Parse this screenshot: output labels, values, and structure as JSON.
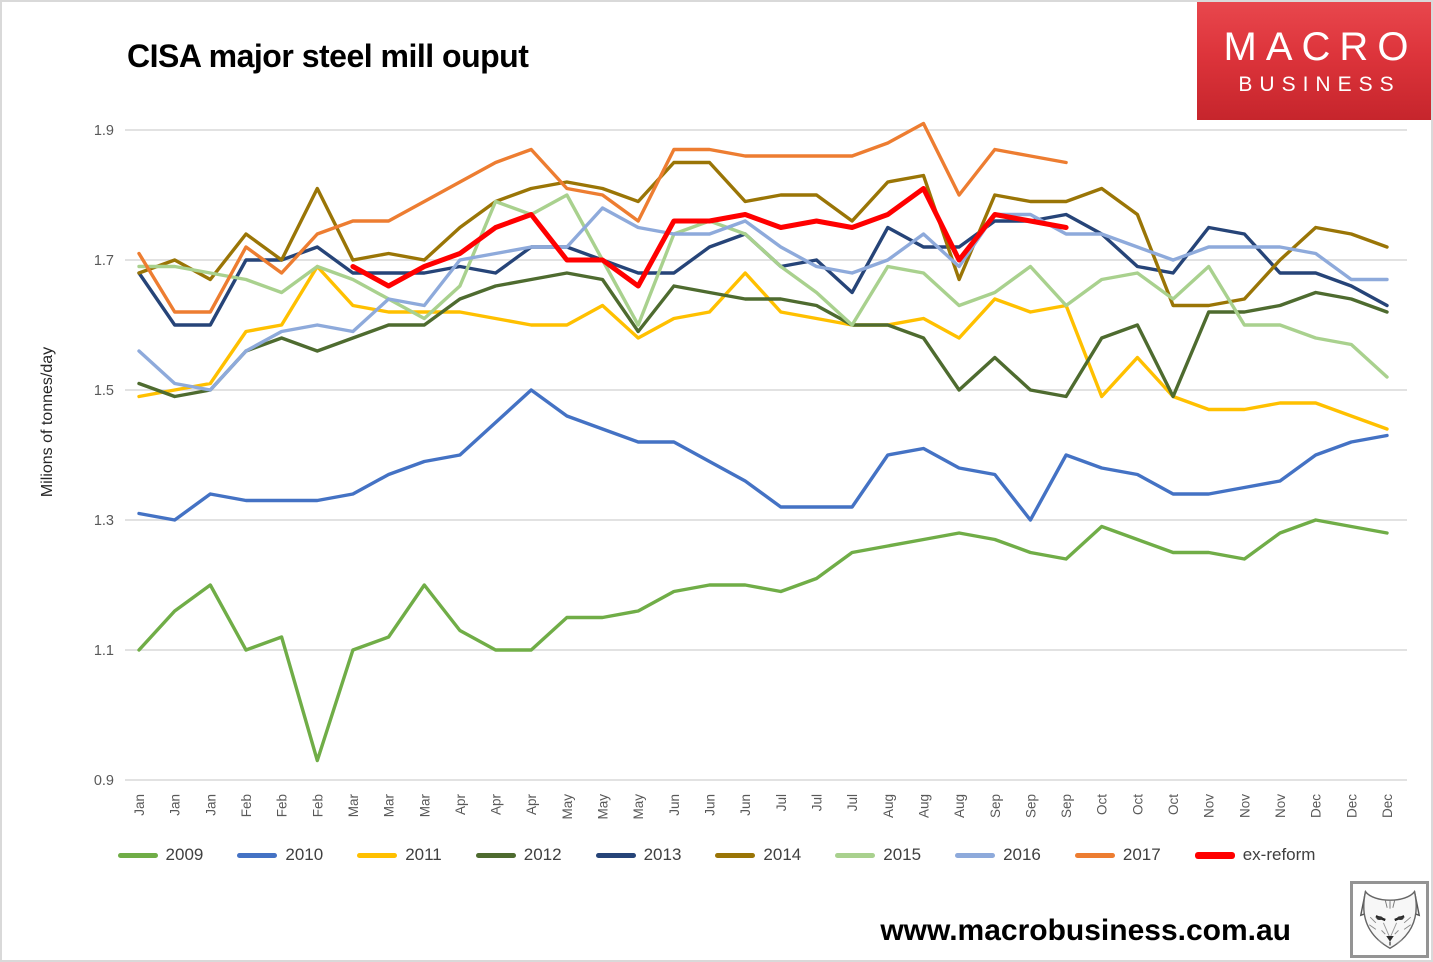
{
  "title": "CISA major steel mill ouput",
  "logo": {
    "line1": "MACRO",
    "line2": "BUSINESS",
    "bg_color": "#D7282F"
  },
  "y_axis_title": "Milions of tonnes/day",
  "footer": {
    "url": "www.macrobusiness.com.au",
    "wolf_logo": "fox-head-sketch"
  },
  "chart_data": {
    "type": "line",
    "title": "CISA major steel mill ouput",
    "ylabel": "Milions of tonnes/day",
    "xlabel": "",
    "ylim": [
      0.9,
      1.9
    ],
    "yticks": [
      0.9,
      1.1,
      1.3,
      1.5,
      1.7,
      1.9
    ],
    "grid": true,
    "legend_position": "bottom",
    "colors": {
      "grid": "#D9D9D9",
      "tick_labels": "#595959",
      "legend_text": "#404040"
    },
    "categories": [
      "Jan",
      "Jan",
      "Jan",
      "Feb",
      "Feb",
      "Feb",
      "Mar",
      "Mar",
      "Mar",
      "Apr",
      "Apr",
      "Apr",
      "May",
      "May",
      "May",
      "Jun",
      "Jun",
      "Jun",
      "Jul",
      "Jul",
      "Jul",
      "Aug",
      "Aug",
      "Aug",
      "Sep",
      "Sep",
      "Sep",
      "Oct",
      "Oct",
      "Oct",
      "Nov",
      "Nov",
      "Nov",
      "Dec",
      "Dec",
      "Dec"
    ],
    "series": [
      {
        "name": "2009",
        "color": "#70AD47",
        "width": 3.4,
        "values": [
          1.1,
          1.16,
          1.2,
          1.1,
          1.12,
          0.93,
          1.1,
          1.12,
          1.2,
          1.13,
          1.1,
          1.1,
          1.15,
          1.15,
          1.16,
          1.19,
          1.2,
          1.2,
          1.19,
          1.21,
          1.25,
          1.26,
          1.27,
          1.28,
          1.27,
          1.25,
          1.24,
          1.29,
          1.27,
          1.25,
          1.25,
          1.24,
          1.28,
          1.3,
          1.29,
          1.28
        ]
      },
      {
        "name": "2010",
        "color": "#4472C4",
        "width": 3.4,
        "values": [
          1.31,
          1.3,
          1.34,
          1.33,
          1.33,
          1.33,
          1.34,
          1.37,
          1.39,
          1.4,
          1.45,
          1.5,
          1.46,
          1.44,
          1.42,
          1.42,
          1.39,
          1.36,
          1.32,
          1.32,
          1.32,
          1.4,
          1.41,
          1.38,
          1.37,
          1.3,
          1.4,
          1.38,
          1.37,
          1.34,
          1.34,
          1.35,
          1.36,
          1.4,
          1.42,
          1.43
        ]
      },
      {
        "name": "2011",
        "color": "#FFC000",
        "width": 3.4,
        "values": [
          1.49,
          1.5,
          1.51,
          1.59,
          1.6,
          1.69,
          1.63,
          1.62,
          1.62,
          1.62,
          1.61,
          1.6,
          1.6,
          1.63,
          1.58,
          1.61,
          1.62,
          1.68,
          1.62,
          1.61,
          1.6,
          1.6,
          1.61,
          1.58,
          1.64,
          1.62,
          1.63,
          1.49,
          1.55,
          1.49,
          1.47,
          1.47,
          1.48,
          1.48,
          1.46,
          1.44
        ]
      },
      {
        "name": "2012",
        "color": "#4E6B2F",
        "width": 3.4,
        "values": [
          1.51,
          1.49,
          1.5,
          1.56,
          1.58,
          1.56,
          1.58,
          1.6,
          1.6,
          1.64,
          1.66,
          1.67,
          1.68,
          1.67,
          1.59,
          1.66,
          1.65,
          1.64,
          1.64,
          1.63,
          1.6,
          1.6,
          1.58,
          1.5,
          1.55,
          1.5,
          1.49,
          1.58,
          1.6,
          1.49,
          1.62,
          1.62,
          1.63,
          1.65,
          1.64,
          1.62
        ]
      },
      {
        "name": "2013",
        "color": "#264478",
        "width": 3.4,
        "values": [
          1.68,
          1.6,
          1.6,
          1.7,
          1.7,
          1.72,
          1.68,
          1.68,
          1.68,
          1.69,
          1.68,
          1.72,
          1.72,
          1.7,
          1.68,
          1.68,
          1.72,
          1.74,
          1.69,
          1.7,
          1.65,
          1.75,
          1.72,
          1.72,
          1.76,
          1.76,
          1.77,
          1.74,
          1.69,
          1.68,
          1.75,
          1.74,
          1.68,
          1.68,
          1.66,
          1.63
        ]
      },
      {
        "name": "2014",
        "color": "#9A7506",
        "width": 3.4,
        "values": [
          1.68,
          1.7,
          1.67,
          1.74,
          1.7,
          1.81,
          1.7,
          1.71,
          1.7,
          1.75,
          1.79,
          1.81,
          1.82,
          1.81,
          1.79,
          1.85,
          1.85,
          1.79,
          1.8,
          1.8,
          1.76,
          1.82,
          1.83,
          1.67,
          1.8,
          1.79,
          1.79,
          1.81,
          1.77,
          1.63,
          1.63,
          1.64,
          1.7,
          1.75,
          1.74,
          1.72
        ]
      },
      {
        "name": "2015",
        "color": "#A9D18E",
        "width": 3.4,
        "values": [
          1.69,
          1.69,
          1.68,
          1.67,
          1.65,
          1.69,
          1.67,
          1.64,
          1.61,
          1.66,
          1.79,
          1.77,
          1.8,
          1.7,
          1.6,
          1.74,
          1.76,
          1.74,
          1.69,
          1.65,
          1.6,
          1.69,
          1.68,
          1.63,
          1.65,
          1.69,
          1.63,
          1.67,
          1.68,
          1.64,
          1.69,
          1.6,
          1.6,
          1.58,
          1.57,
          1.52
        ]
      },
      {
        "name": "2016",
        "color": "#8EAADB",
        "width": 3.4,
        "values": [
          1.56,
          1.51,
          1.5,
          1.56,
          1.59,
          1.6,
          1.59,
          1.64,
          1.63,
          1.7,
          1.71,
          1.72,
          1.72,
          1.78,
          1.75,
          1.74,
          1.74,
          1.76,
          1.72,
          1.69,
          1.68,
          1.7,
          1.74,
          1.69,
          1.77,
          1.77,
          1.74,
          1.74,
          1.72,
          1.7,
          1.72,
          1.72,
          1.72,
          1.71,
          1.67,
          1.67
        ]
      },
      {
        "name": "2017",
        "color": "#ED7D31",
        "width": 3.4,
        "values": [
          1.71,
          1.62,
          1.62,
          1.72,
          1.68,
          1.74,
          1.76,
          1.76,
          1.79,
          1.82,
          1.85,
          1.87,
          1.81,
          1.8,
          1.76,
          1.87,
          1.87,
          1.86,
          1.86,
          1.86,
          1.86,
          1.88,
          1.91,
          1.8,
          1.87,
          1.86,
          1.85,
          null,
          null,
          null,
          null,
          null,
          null,
          null,
          null,
          null
        ]
      },
      {
        "name": "ex-reform",
        "color": "#FF0000",
        "width": 5,
        "values": [
          null,
          null,
          null,
          null,
          null,
          null,
          1.69,
          1.66,
          1.69,
          1.71,
          1.75,
          1.77,
          1.7,
          1.7,
          1.66,
          1.76,
          1.76,
          1.77,
          1.75,
          1.76,
          1.75,
          1.77,
          1.81,
          1.7,
          1.77,
          1.76,
          1.75,
          null,
          null,
          null,
          null,
          null,
          null,
          null,
          null,
          null
        ]
      }
    ]
  }
}
